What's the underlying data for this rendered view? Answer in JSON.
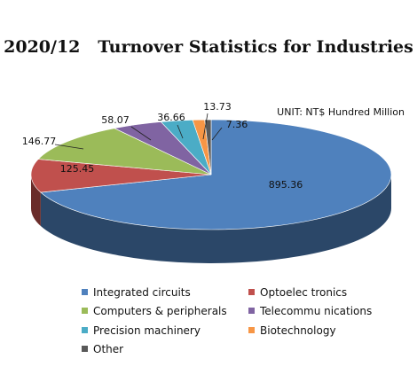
{
  "chart_data": {
    "type": "pie",
    "title": "2020/12   Turnover Statistics for Industries",
    "unit_label": "UNIT: NT$ Hundred Million",
    "legend_position": "bottom",
    "slices": [
      {
        "name": "Integrated circuits",
        "value": 895.36,
        "label": "895.36",
        "color": "#4f81bd"
      },
      {
        "name": "Optoelec tronics",
        "value": 125.45,
        "label": "125.45",
        "color": "#c0504d"
      },
      {
        "name": "Computers & peripherals",
        "value": 146.77,
        "label": "146.77",
        "color": "#9bbb59"
      },
      {
        "name": "Telecommu nications",
        "value": 58.07,
        "label": "58.07",
        "color": "#8064a2"
      },
      {
        "name": "Precision machinery",
        "value": 36.66,
        "label": "36.66",
        "color": "#4bacc6"
      },
      {
        "name": "Biotechnology",
        "value": 13.73,
        "label": "13.73",
        "color": "#f79646"
      },
      {
        "name": "Other",
        "value": 7.36,
        "label": "7.36",
        "color": "#595959"
      }
    ]
  }
}
